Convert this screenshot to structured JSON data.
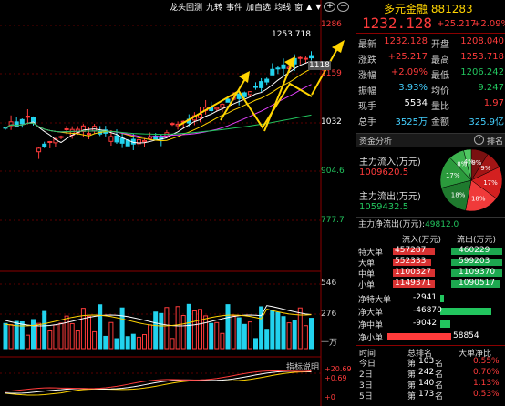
{
  "toolbar": {
    "items": [
      "龙头回测",
      "九转",
      "事件",
      "加自选",
      "均线",
      "窗"
    ]
  },
  "price_axis": [
    "1286",
    "1159",
    "1032",
    "904.6",
    "777.7"
  ],
  "price_axis_colors": [
    "#ff3b3b",
    "#ff3b3b",
    "#ffffff",
    "#22c55e",
    "#22c55e"
  ],
  "chart_labels": {
    "high_marker": "1253.718",
    "last_marker": "1118"
  },
  "volume_axis": [
    "546",
    "276",
    "十万"
  ],
  "indicator": {
    "button": "指标说明",
    "axis": [
      "+20.69",
      "+0.69",
      "+0"
    ]
  },
  "stock": {
    "name": "多元金融",
    "code": "881283",
    "price": "1232.128",
    "change": "+25.217",
    "change_pct": "+2.09%"
  },
  "quote": [
    {
      "k1": "最新",
      "v1": "1232.128",
      "c1": "#ff3b3b",
      "k2": "开盘",
      "v2": "1208.040",
      "c2": "#ff3b3b"
    },
    {
      "k1": "涨跌",
      "v1": "+25.217",
      "c1": "#ff3b3b",
      "k2": "最高",
      "v2": "1253.718",
      "c2": "#ff3b3b"
    },
    {
      "k1": "涨幅",
      "v1": "+2.09%",
      "c1": "#ff3b3b",
      "k2": "最低",
      "v2": "1206.242",
      "c2": "#22c55e"
    },
    {
      "k1": "振幅",
      "v1": "3.93%",
      "c1": "#44d0ff",
      "k2": "均价",
      "v2": "9.247",
      "c2": "#22c55e"
    },
    {
      "k1": "现手",
      "v1": "5534",
      "c1": "#ffffff",
      "k2": "量比",
      "v2": "1.97",
      "c2": "#ff3b3b"
    },
    {
      "k1": "总手",
      "v1": "3525万",
      "c1": "#44d0ff",
      "k2": "金额",
      "v2": "325.9亿",
      "c2": "#44d0ff"
    }
  ],
  "fund": {
    "tab_label": "资金分析",
    "rank_label": "排名",
    "inflow_label": "主力流入(万元)",
    "inflow_value": "1009620.5",
    "outflow_label": "主力流出(万元)",
    "outflow_value": "1059432.5",
    "pie": [
      {
        "label": "9%",
        "value": 9,
        "color": "#7a1010"
      },
      {
        "label": "9%",
        "value": 9,
        "color": "#a31515"
      },
      {
        "label": "17%",
        "value": 17,
        "color": "#d42020"
      },
      {
        "label": "18%",
        "value": 18,
        "color": "#f03a3a"
      },
      {
        "label": "18%",
        "value": 18,
        "color": "#1f7a2e"
      },
      {
        "label": "17%",
        "value": 17,
        "color": "#2b9a3c"
      },
      {
        "label": "8%",
        "value": 8,
        "color": "#3db34f"
      },
      {
        "label": "4%",
        "value": 4,
        "color": "#50c862"
      }
    ],
    "net_label": "主力净流出(万元):",
    "net_value": "49812.0"
  },
  "flow_table": {
    "headers": [
      "流入(万元)",
      "流出(万元)"
    ],
    "rows": [
      {
        "name": "特大单",
        "in": "457287",
        "out": "460229",
        "in_frac": 0.99,
        "out_frac": 1.0
      },
      {
        "name": "大单",
        "in": "552333",
        "out": "599203",
        "in_frac": 0.92,
        "out_frac": 1.0
      },
      {
        "name": "中单",
        "in": "1100327",
        "out": "1109370",
        "in_frac": 0.99,
        "out_frac": 1.0
      },
      {
        "name": "小单",
        "in": "1149371",
        "out": "1090517",
        "in_frac": 1.0,
        "out_frac": 0.95
      }
    ]
  },
  "net_flow": [
    {
      "name": "净特大单",
      "value": "-2941",
      "frac": 0.05
    },
    {
      "name": "净大单",
      "value": "-46870",
      "frac": 0.8
    },
    {
      "name": "净中单",
      "value": "-9042",
      "frac": 0.15
    },
    {
      "name": "净小单",
      "value": "58854",
      "frac": 1.0
    }
  ],
  "rank_table": {
    "headers": [
      "时间",
      "总排名",
      "大单净比"
    ],
    "rows": [
      {
        "t": "今日",
        "prefix": "第",
        "rank": "103",
        "suffix": "名",
        "pct": "0.55%"
      },
      {
        "t": "2日",
        "prefix": "第",
        "rank": "242",
        "suffix": "名",
        "pct": "0.70%"
      },
      {
        "t": "3日",
        "prefix": "第",
        "rank": "140",
        "suffix": "名",
        "pct": "1.13%"
      },
      {
        "t": "5日",
        "prefix": "第",
        "rank": "173",
        "suffix": "名",
        "pct": "0.53%"
      }
    ]
  }
}
